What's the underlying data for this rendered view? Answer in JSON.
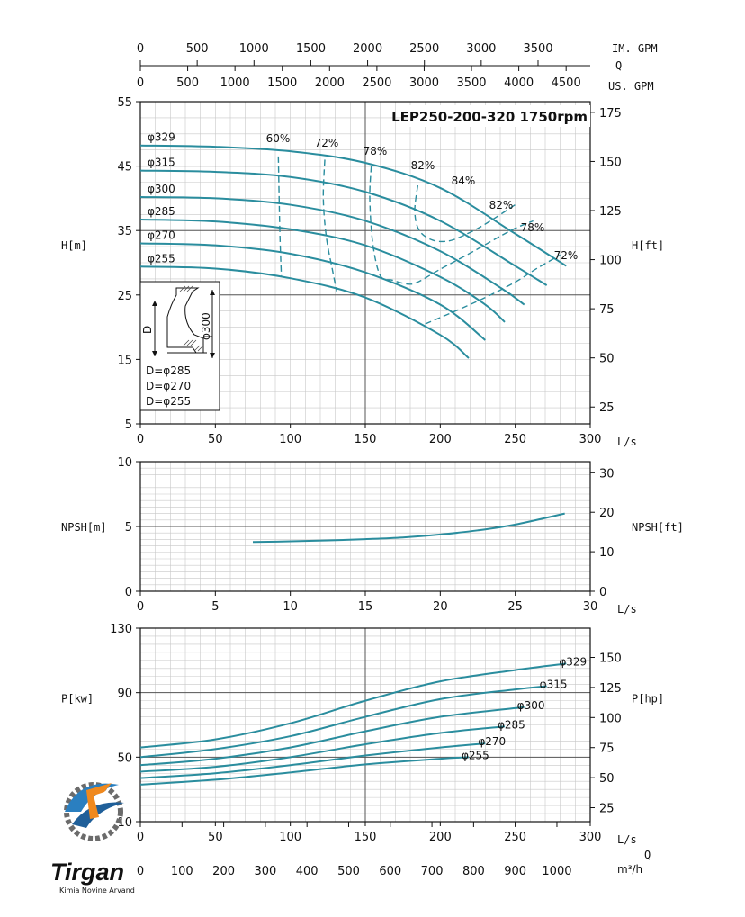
{
  "colors": {
    "curve": "#2a8d9e",
    "grid_major": "#555555",
    "grid_minor": "#c8c8c8",
    "text": "#111111"
  },
  "top_axes": {
    "im_label": "IM. GPM",
    "im_ticks": [
      "0",
      "500",
      "1000",
      "1500",
      "2000",
      "2500",
      "3000",
      "3500"
    ],
    "q_label": "Q",
    "us_label": "US. GPM",
    "us_ticks": [
      "0",
      "500",
      "1000",
      "1500",
      "2000",
      "2500",
      "3000",
      "3500",
      "4000",
      "4500"
    ]
  },
  "chart_data": [
    {
      "type": "line",
      "title": "LEP250-200-320 1750rpm",
      "xlabel": "L/s",
      "ylabel": "H[m]",
      "ylabel_right": "H[ft]",
      "xlim": [
        0,
        300
      ],
      "ylim": [
        5,
        55
      ],
      "ylim_right": [
        16.4,
        180.4
      ],
      "x_ticks": [
        "0",
        "50",
        "100",
        "150",
        "200",
        "250",
        "300"
      ],
      "y_ticks": [
        "5",
        "15",
        "25",
        "35",
        "45",
        "55"
      ],
      "y_ticks_right": [
        "25",
        "50",
        "75",
        "100",
        "125",
        "150",
        "175"
      ],
      "series": [
        {
          "name": "φ329",
          "x": [
            0,
            50,
            100,
            150,
            200,
            250,
            284
          ],
          "y": [
            48.2,
            48.0,
            47.3,
            45.5,
            41.6,
            34.5,
            29.5
          ]
        },
        {
          "name": "φ315",
          "x": [
            0,
            50,
            100,
            150,
            200,
            250,
            271
          ],
          "y": [
            44.3,
            44.1,
            43.3,
            41.0,
            36.5,
            29.5,
            26.5
          ]
        },
        {
          "name": "φ300",
          "x": [
            0,
            50,
            100,
            150,
            200,
            241,
            256
          ],
          "y": [
            40.2,
            40.0,
            39.0,
            36.5,
            31.8,
            26.0,
            23.5
          ]
        },
        {
          "name": "φ285",
          "x": [
            0,
            50,
            100,
            150,
            200,
            230,
            243
          ],
          "y": [
            36.7,
            36.4,
            35.2,
            32.7,
            27.8,
            23.5,
            20.8
          ]
        },
        {
          "name": "φ270",
          "x": [
            0,
            50,
            100,
            150,
            200,
            230
          ],
          "y": [
            33.0,
            32.7,
            31.4,
            28.5,
            23.5,
            18.0
          ]
        },
        {
          "name": "φ255",
          "x": [
            0,
            50,
            100,
            150,
            200,
            219
          ],
          "y": [
            29.4,
            29.1,
            27.6,
            24.6,
            18.8,
            15.2
          ]
        }
      ],
      "efficiency_curves": [
        {
          "label": "60%",
          "x": [
            92,
            93,
            94
          ],
          "y": [
            46.5,
            35,
            28
          ]
        },
        {
          "label": "72%",
          "x": [
            123,
            122,
            124,
            128,
            131
          ],
          "y": [
            46,
            40,
            34,
            29,
            25.5
          ]
        },
        {
          "label": "78%",
          "x": [
            154,
            153,
            155,
            160,
            168,
            178,
            185,
            200,
            220,
            247,
            262
          ],
          "y": [
            45,
            40,
            33,
            28,
            27.3,
            26.7,
            27,
            29,
            31.5,
            35,
            36.5
          ]
        },
        {
          "label": "82%",
          "x": [
            185,
            183,
            186,
            195,
            206,
            218,
            230,
            250
          ],
          "y": [
            42,
            38,
            35,
            33.5,
            33.4,
            34.5,
            36,
            39
          ]
        },
        {
          "label": "84%",
          "x": [],
          "y": []
        },
        {
          "label": "82%",
          "x": [],
          "y": []
        },
        {
          "label": "78%",
          "x": [],
          "y": []
        },
        {
          "label": "72%",
          "x": [
            190,
            210,
            230,
            250,
            265,
            280
          ],
          "y": [
            20.5,
            22.5,
            24.6,
            27,
            29.2,
            31.2
          ]
        }
      ],
      "inset": {
        "dim_label_d": "D",
        "dim_label_phi": "φ300",
        "lines": [
          "D=φ285",
          "D=φ270",
          "D=φ255"
        ]
      }
    },
    {
      "type": "line",
      "xlabel": "L/s",
      "ylabel": "NPSH[m]",
      "ylabel_right": "NPSH[ft]",
      "xlim": [
        0,
        30
      ],
      "ylim": [
        0,
        10
      ],
      "ylim_right": [
        0,
        32.8
      ],
      "x_ticks": [
        "0",
        "5",
        "10",
        "15",
        "20",
        "25",
        "30"
      ],
      "y_ticks": [
        "0",
        "5",
        "10"
      ],
      "y_ticks_right": [
        "0",
        "10",
        "20",
        "30"
      ],
      "series": [
        {
          "x": [
            7.5,
            10,
            12.5,
            15,
            17.5,
            20,
            22.5,
            25,
            28.3
          ],
          "y": [
            3.8,
            3.85,
            3.92,
            4.02,
            4.15,
            4.38,
            4.7,
            5.15,
            6.0
          ]
        }
      ]
    },
    {
      "type": "line",
      "xlabel": "L/s",
      "ylabel": "P[kw]",
      "ylabel_right": "P[hp]",
      "xlim": [
        0,
        300
      ],
      "ylim": [
        10,
        130
      ],
      "ylim_right": [
        13.4,
        174.3
      ],
      "x_ticks": [
        "0",
        "50",
        "100",
        "150",
        "200",
        "250",
        "300"
      ],
      "y_ticks": [
        "10",
        "50",
        "90",
        "130"
      ],
      "y_ticks_right": [
        "25",
        "50",
        "75",
        "100",
        "125",
        "150"
      ],
      "series": [
        {
          "name": "φ329",
          "x": [
            0,
            50,
            100,
            150,
            200,
            250,
            284
          ],
          "y": [
            56,
            61,
            71,
            85,
            97,
            104,
            108
          ]
        },
        {
          "name": "φ315",
          "x": [
            0,
            50,
            100,
            150,
            200,
            250,
            271
          ],
          "y": [
            50,
            55,
            63,
            75,
            86,
            92,
            94
          ]
        },
        {
          "name": "φ300",
          "x": [
            0,
            50,
            100,
            150,
            200,
            256
          ],
          "y": [
            45,
            49,
            56,
            66,
            75,
            81
          ]
        },
        {
          "name": "φ285",
          "x": [
            0,
            50,
            100,
            150,
            200,
            243
          ],
          "y": [
            41,
            44,
            50,
            58,
            65,
            69
          ]
        },
        {
          "name": "φ270",
          "x": [
            0,
            50,
            100,
            150,
            200,
            230
          ],
          "y": [
            37,
            40,
            45,
            51,
            56,
            58.5
          ]
        },
        {
          "name": "φ255",
          "x": [
            0,
            50,
            100,
            150,
            200,
            219
          ],
          "y": [
            33,
            36,
            40.5,
            45.5,
            49,
            50
          ]
        }
      ]
    }
  ],
  "bottom_axis": {
    "ls_label": "L/s",
    "q_label": "Q",
    "m3h_label": "m³/h",
    "m3h_ticks": [
      "0",
      "100",
      "200",
      "300",
      "400",
      "500",
      "600",
      "700",
      "800",
      "900",
      "1000"
    ]
  },
  "logo": {
    "brand": "Tirgan",
    "company": "Kimia Novine Arvand"
  }
}
